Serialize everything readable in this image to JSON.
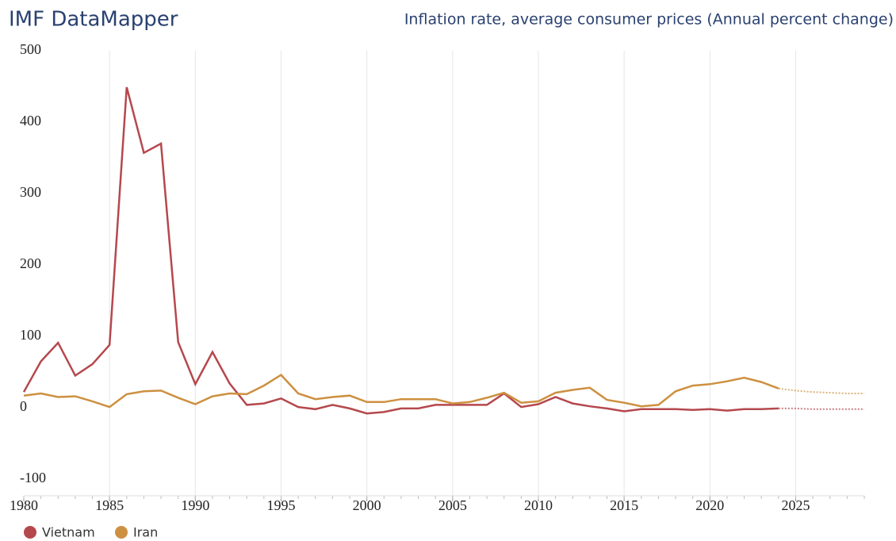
{
  "chart_data": {
    "type": "line",
    "title": "IMF DataMapper",
    "subtitle": "Inflation rate, average consumer prices (Annual percent change)",
    "x": [
      1980,
      1981,
      1982,
      1983,
      1984,
      1985,
      1986,
      1987,
      1988,
      1989,
      1990,
      1991,
      1992,
      1993,
      1994,
      1995,
      1996,
      1997,
      1998,
      1999,
      2000,
      2001,
      2002,
      2003,
      2004,
      2005,
      2006,
      2007,
      2008,
      2009,
      2010,
      2011,
      2012,
      2013,
      2014,
      2015,
      2016,
      2017,
      2018,
      2019,
      2020,
      2021,
      2022,
      2023,
      2024,
      2025,
      2026,
      2027,
      2028,
      2029
    ],
    "projection_from": 2024,
    "series": [
      {
        "name": "Vietnam",
        "color": "#b5484d",
        "values": [
          22,
          65,
          91,
          45,
          61,
          88,
          449,
          357,
          370,
          92,
          33,
          78,
          34,
          4,
          6,
          13,
          1,
          -2,
          4,
          -1,
          -8,
          -6,
          -1,
          -1,
          4,
          4,
          4,
          4,
          20,
          1,
          5,
          15,
          6,
          2,
          -1,
          -5,
          -2,
          -2,
          -2,
          -3,
          -2,
          -4,
          -2,
          -2,
          -1,
          -1,
          -2,
          -2,
          -2,
          -2
        ]
      },
      {
        "name": "Iran",
        "color": "#cd9040",
        "values": [
          17,
          20,
          15,
          16,
          9,
          1,
          19,
          23,
          24,
          14,
          5,
          16,
          20,
          19,
          31,
          46,
          20,
          12,
          15,
          17,
          8,
          8,
          12,
          12,
          12,
          6,
          8,
          14,
          21,
          7,
          9,
          21,
          25,
          28,
          11,
          7,
          2,
          4,
          23,
          31,
          33,
          37,
          42,
          36,
          27,
          24,
          22,
          21,
          20,
          20
        ]
      }
    ],
    "xlim": [
      1980,
      2029
    ],
    "xticks": [
      1980,
      1985,
      1990,
      1995,
      2000,
      2005,
      2010,
      2015,
      2020,
      2025
    ],
    "ylim": [
      -100,
      500
    ],
    "yticks": [
      -100,
      0,
      100,
      200,
      300,
      400,
      500
    ],
    "grid": true,
    "legend": "bottom-left"
  }
}
